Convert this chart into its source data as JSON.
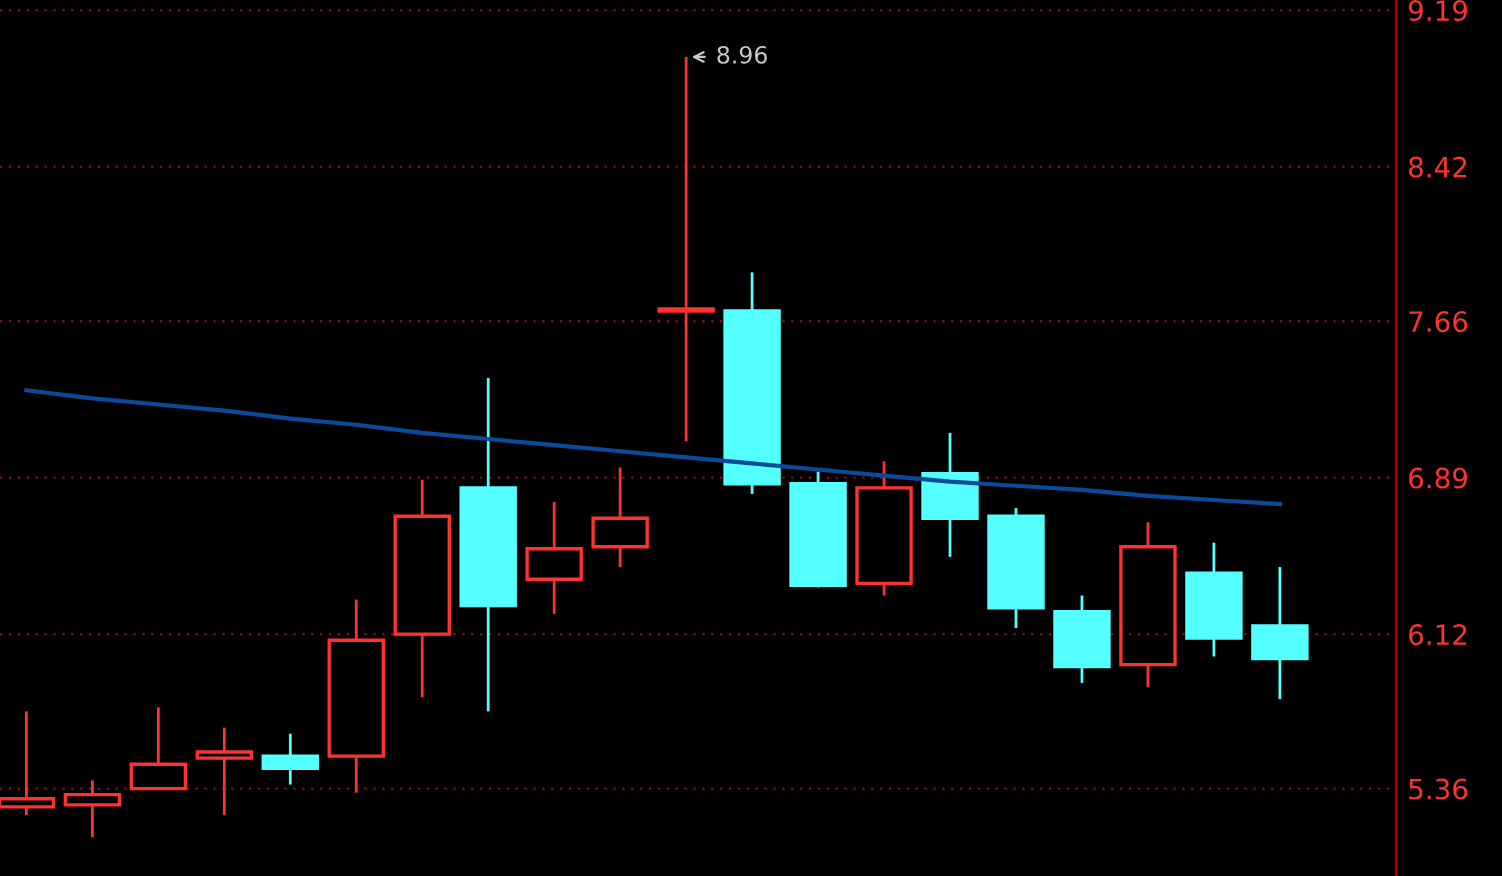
{
  "chart_data": {
    "type": "candlestick",
    "categories": [
      null,
      null,
      null,
      null,
      null,
      null,
      null,
      null,
      null,
      null,
      null,
      null,
      null,
      null,
      null,
      null,
      null,
      null,
      null,
      null
    ],
    "ohlc": [
      [
        5.27,
        5.74,
        5.23,
        5.31
      ],
      [
        5.28,
        5.4,
        5.12,
        5.33
      ],
      [
        5.36,
        5.76,
        5.36,
        5.48
      ],
      [
        5.51,
        5.66,
        5.23,
        5.54
      ],
      [
        5.52,
        5.63,
        5.38,
        5.46
      ],
      [
        5.52,
        6.29,
        5.34,
        6.09
      ],
      [
        6.12,
        6.88,
        5.81,
        6.7
      ],
      [
        6.84,
        7.38,
        5.74,
        6.26
      ],
      [
        6.39,
        6.77,
        6.22,
        6.54
      ],
      [
        6.55,
        6.94,
        6.45,
        6.69
      ],
      [
        7.71,
        8.96,
        7.07,
        7.72
      ],
      [
        7.71,
        7.9,
        6.81,
        6.86
      ],
      [
        6.86,
        6.92,
        6.35,
        6.36
      ],
      [
        6.37,
        6.97,
        6.31,
        6.84
      ],
      [
        6.91,
        7.11,
        6.5,
        6.69
      ],
      [
        6.7,
        6.74,
        6.15,
        6.25
      ],
      [
        6.23,
        6.31,
        5.88,
        5.96
      ],
      [
        5.97,
        6.67,
        5.86,
        6.55
      ],
      [
        6.42,
        6.57,
        6.01,
        6.1
      ],
      [
        6.16,
        6.45,
        5.8,
        6.0
      ]
    ],
    "colors": [
      "#ff3232",
      "#ff3232",
      "#ff3232",
      "#ff3232",
      "#54ffff",
      "#ff3232",
      "#ff3232",
      "#54ffff",
      "#ff3232",
      "#ff3232",
      "#ff3232",
      "#54ffff",
      "#54ffff",
      "#ff3232",
      "#54ffff",
      "#54ffff",
      "#54ffff",
      "#ff3232",
      "#54ffff",
      "#54ffff"
    ],
    "series": [
      {
        "type": "line",
        "color": "#0a4a9a",
        "values": [
          7.32,
          7.28,
          7.25,
          7.22,
          7.18,
          7.15,
          7.11,
          7.08,
          7.05,
          7.02,
          6.99,
          6.96,
          6.93,
          6.9,
          6.87,
          6.85,
          6.83,
          6.8,
          6.78,
          6.76
        ]
      }
    ],
    "ylim": [
      4.93,
      9.24
    ],
    "yticks": [
      9.19,
      8.42,
      7.66,
      6.89,
      6.12,
      5.36
    ],
    "grid": "y",
    "annotations": [
      "8.96"
    ]
  }
}
